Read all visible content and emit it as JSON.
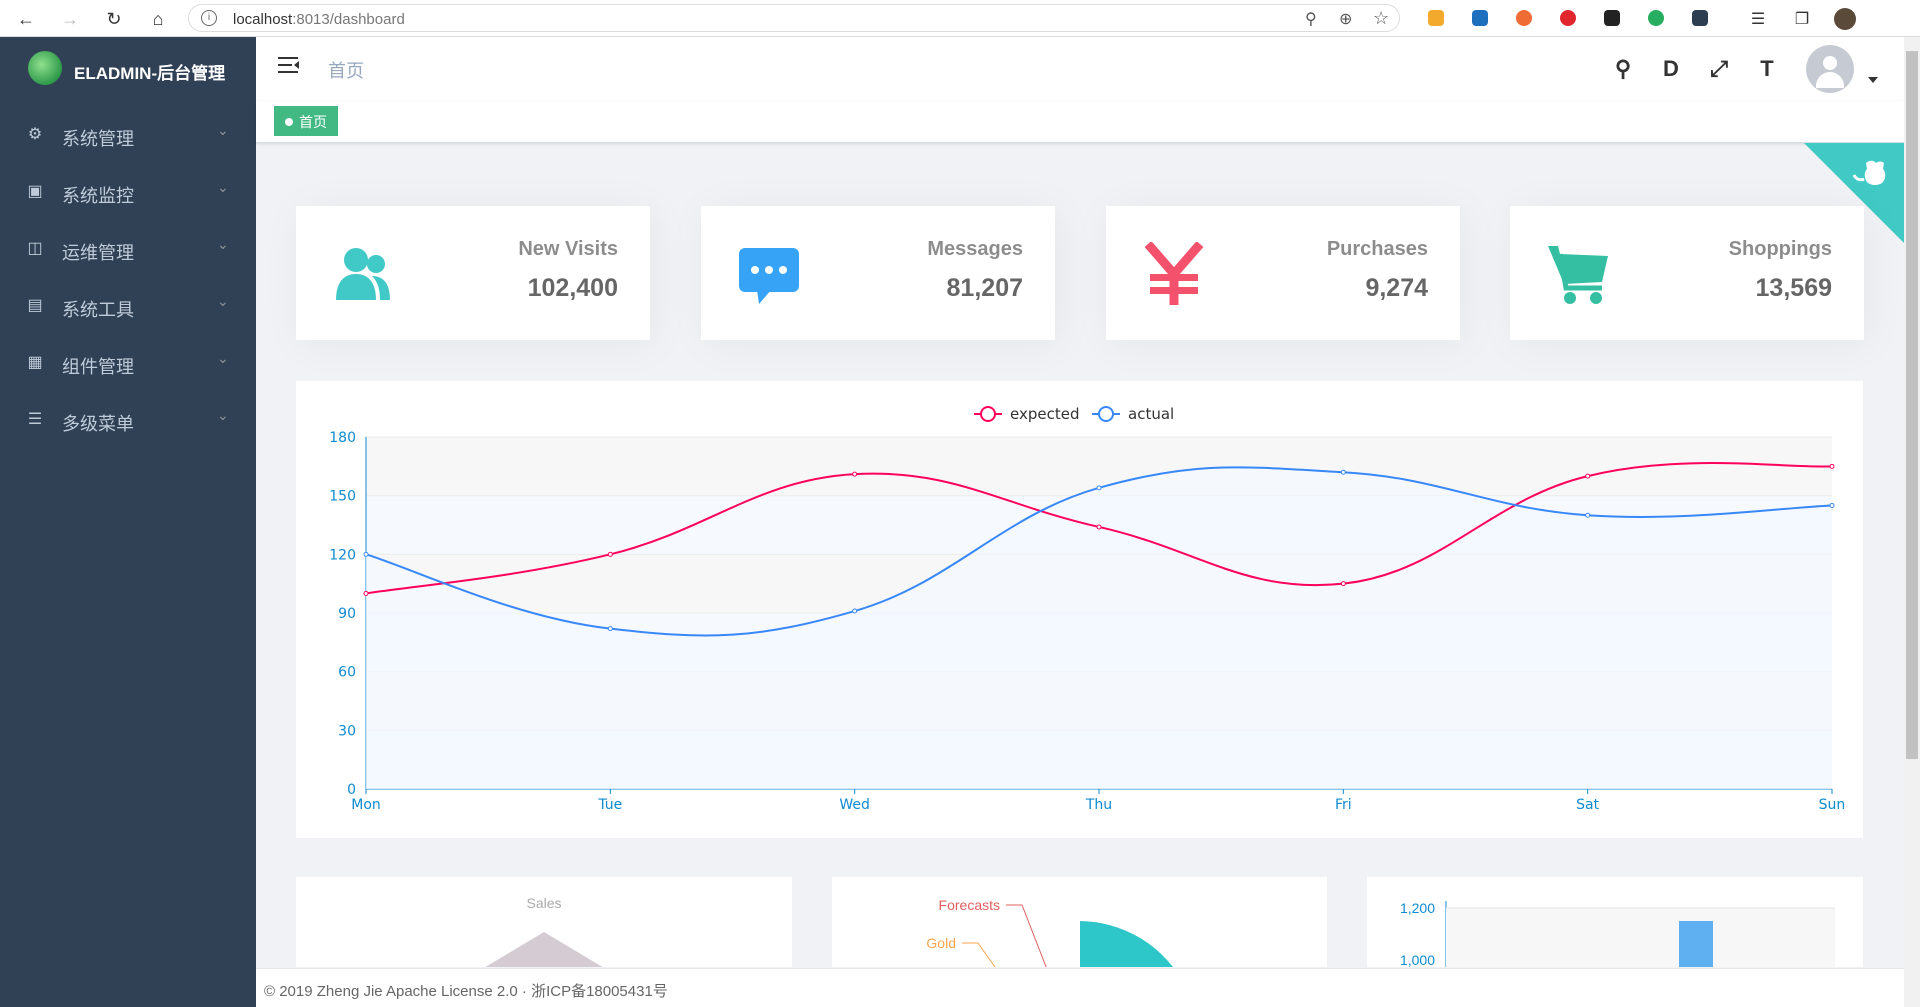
{
  "browser": {
    "url_host": "localhost",
    "url_rest": ":8013/dashboard"
  },
  "sidebar": {
    "app_title": "ELADMIN-后台管理",
    "items": [
      {
        "label": "系统管理",
        "icon": "gear-icon"
      },
      {
        "label": "系统监控",
        "icon": "monitor-icon"
      },
      {
        "label": "运维管理",
        "icon": "server-icon"
      },
      {
        "label": "系统工具",
        "icon": "toolbox-icon"
      },
      {
        "label": "组件管理",
        "icon": "grid-icon"
      },
      {
        "label": "多级菜单",
        "icon": "list-icon"
      }
    ]
  },
  "header": {
    "breadcrumb": "首页"
  },
  "tags_view": {
    "active_tag": "首页"
  },
  "panels": [
    {
      "label": "New Visits",
      "value": "102,400",
      "icon": "peoples-icon",
      "color": "#40c9c6"
    },
    {
      "label": "Messages",
      "value": "81,207",
      "icon": "message-icon",
      "color": "#36a3f7"
    },
    {
      "label": "Purchases",
      "value": "9,274",
      "icon": "money-icon",
      "color": "#f4516c"
    },
    {
      "label": "Shoppings",
      "value": "13,569",
      "icon": "shopping-cart-icon",
      "color": "#34bfa3"
    }
  ],
  "chart_data": {
    "type": "line",
    "categories": [
      "Mon",
      "Tue",
      "Wed",
      "Thu",
      "Fri",
      "Sat",
      "Sun"
    ],
    "series": [
      {
        "name": "expected",
        "values": [
          100,
          120,
          161,
          134,
          105,
          160,
          165
        ],
        "color": "#FF005A"
      },
      {
        "name": "actual",
        "values": [
          120,
          82,
          91,
          154,
          162,
          140,
          145
        ],
        "color": "#3888fa"
      }
    ],
    "ylim": [
      0,
      180
    ],
    "yticks": [
      0,
      30,
      60,
      90,
      120,
      150,
      180
    ],
    "legend_position": "top-center",
    "grid": true
  },
  "bottom_charts": {
    "radar_title": "Sales",
    "pie_labels": [
      "Forecasts",
      "Gold"
    ],
    "bar_yticks": [
      "1,200",
      "1,000"
    ]
  },
  "footer": {
    "text": "© 2019 Zheng Jie Apache License 2.0 · 浙ICP备18005431号"
  }
}
